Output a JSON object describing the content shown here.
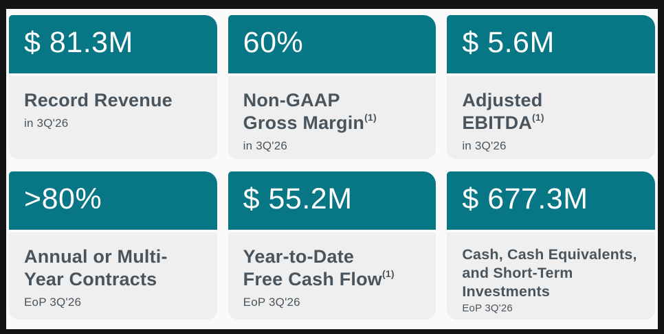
{
  "slide": {
    "description": "Quarterly financial highlights KPI cards",
    "colors": {
      "frame": "#141414",
      "canvas": "#fafafa",
      "header_teal": "#077685",
      "card_body": "#efefef",
      "value_text": "#ffffff",
      "body_text": "#4a545c"
    }
  },
  "cards": [
    {
      "value": "$ 81.3M",
      "title": "Record Revenue",
      "sup": "",
      "period": "in  3Q'26"
    },
    {
      "value": "60%",
      "title": "Non-GAAP\nGross Margin",
      "sup": "(1)",
      "period": "in  3Q'26"
    },
    {
      "value": "$ 5.6M",
      "title": "Adjusted\nEBITDA",
      "sup": "(1)",
      "period": "in  3Q'26"
    },
    {
      "value": ">80%",
      "title": "Annual or Multi-\nYear Contracts",
      "sup": "",
      "period": "EoP 3Q'26"
    },
    {
      "value": "$ 55.2M",
      "title": "Year-to-Date\nFree Cash Flow",
      "sup": "(1)",
      "period": "EoP 3Q'26"
    },
    {
      "value": "$ 677.3M",
      "title": "Cash, Cash Equivalents,\nand Short-Term\nInvestments",
      "sup": "",
      "period": "EoP 3Q'26"
    }
  ]
}
